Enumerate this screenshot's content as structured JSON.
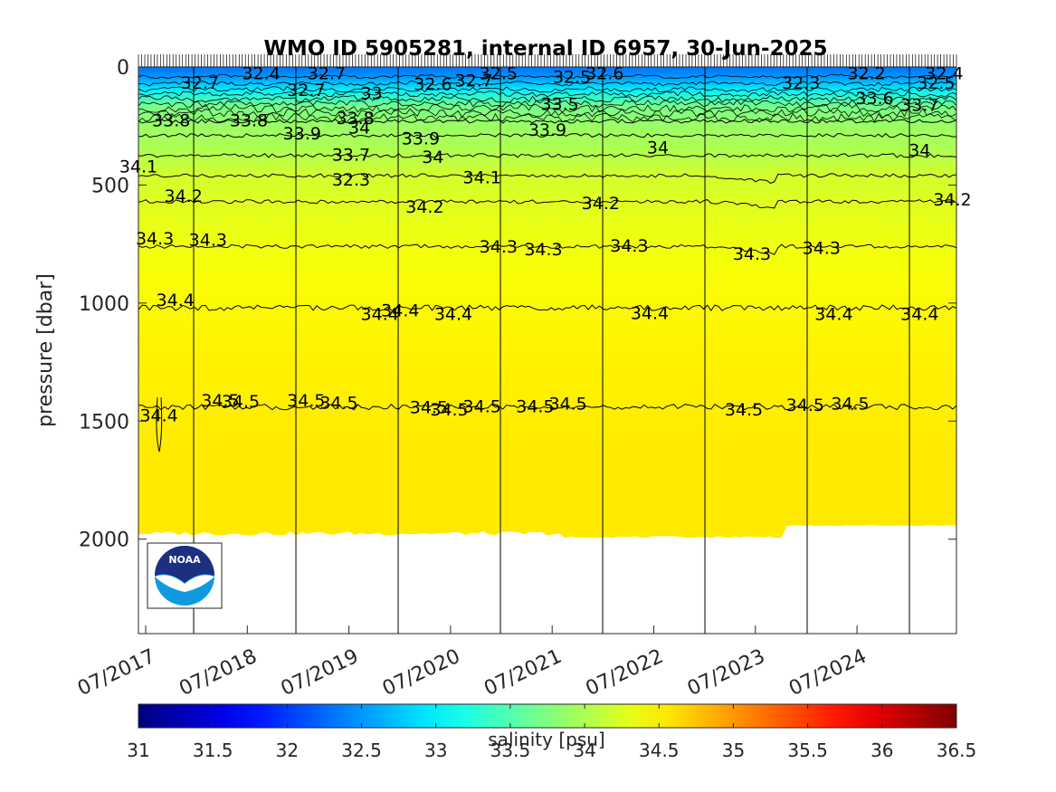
{
  "chart_data": {
    "type": "heatmap",
    "title": "WMO ID 5905281, internal ID 6957, 30-Jun-2025",
    "ylabel": "pressure [dbar]",
    "xlabel": "",
    "ylim": [
      0,
      2400
    ],
    "y_reversed": true,
    "y_ticks": [
      "0",
      "500",
      "1000",
      "1500",
      "2000"
    ],
    "x_ticks": [
      "07/2017",
      "07/2018",
      "07/2019",
      "07/2020",
      "07/2021",
      "07/2022",
      "07/2023",
      "07/2024"
    ],
    "year_divider_count": 8,
    "max_profile_depth_dbar": 2000,
    "colorbar": {
      "label": "salinity [psu]",
      "range": [
        31,
        36.5
      ],
      "ticks": [
        "31",
        "31.5",
        "32",
        "32.5",
        "33",
        "33.5",
        "34",
        "34.5",
        "35",
        "35.5",
        "36",
        "36.5"
      ],
      "colormap": "jet"
    },
    "salinity_profile": [
      {
        "pressure": 0,
        "salinity": 32.3
      },
      {
        "pressure": 50,
        "salinity": 32.5
      },
      {
        "pressure": 120,
        "salinity": 33.0
      },
      {
        "pressure": 200,
        "salinity": 33.7
      },
      {
        "pressure": 300,
        "salinity": 33.9
      },
      {
        "pressure": 420,
        "salinity": 34.0
      },
      {
        "pressure": 560,
        "salinity": 34.2
      },
      {
        "pressure": 760,
        "salinity": 34.3
      },
      {
        "pressure": 1020,
        "salinity": 34.4
      },
      {
        "pressure": 1450,
        "salinity": 34.5
      },
      {
        "pressure": 2000,
        "salinity": 34.55
      }
    ],
    "contour_levels": [
      {
        "value": 33.8,
        "pressure": 230,
        "label": "33.8"
      },
      {
        "value": 33.9,
        "pressure": 290,
        "label": "33.9"
      },
      {
        "value": 34.0,
        "pressure": 375,
        "label": "34"
      },
      {
        "value": 34.1,
        "pressure": 460,
        "label": "34.1"
      },
      {
        "value": 34.2,
        "pressure": 570,
        "label": "34.2"
      },
      {
        "value": 34.3,
        "pressure": 760,
        "label": "34.3"
      },
      {
        "value": 34.4,
        "pressure": 1020,
        "label": "34.4"
      },
      {
        "value": 34.5,
        "pressure": 1440,
        "label": "34.5"
      }
    ],
    "contour_labels": [
      {
        "text": "32.7",
        "t": 0.075,
        "p": 65
      },
      {
        "text": "32.4",
        "t": 0.15,
        "p": 25
      },
      {
        "text": "32.7",
        "t": 0.23,
        "p": 25
      },
      {
        "text": "32.7",
        "t": 0.205,
        "p": 95
      },
      {
        "text": "33",
        "t": 0.285,
        "p": 110
      },
      {
        "text": "32.6",
        "t": 0.36,
        "p": 70
      },
      {
        "text": "32.7",
        "t": 0.41,
        "p": 55
      },
      {
        "text": "32.5",
        "t": 0.44,
        "p": 25
      },
      {
        "text": "32.5",
        "t": 0.53,
        "p": 40
      },
      {
        "text": "32.6",
        "t": 0.57,
        "p": 25
      },
      {
        "text": "32.3",
        "t": 0.81,
        "p": 65
      },
      {
        "text": "32.2",
        "t": 0.89,
        "p": 25
      },
      {
        "text": "32.4",
        "t": 0.985,
        "p": 25
      },
      {
        "text": "32.5",
        "t": 0.975,
        "p": 65
      },
      {
        "text": "33.5",
        "t": 0.515,
        "p": 155
      },
      {
        "text": "33.6",
        "t": 0.9,
        "p": 130
      },
      {
        "text": "33.7",
        "t": 0.955,
        "p": 160
      },
      {
        "text": "33.8",
        "t": 0.04,
        "p": 225
      },
      {
        "text": "33.8",
        "t": 0.135,
        "p": 225
      },
      {
        "text": "33.8",
        "t": 0.265,
        "p": 215
      },
      {
        "text": "34",
        "t": 0.27,
        "p": 255
      },
      {
        "text": "33.9",
        "t": 0.2,
        "p": 280
      },
      {
        "text": "33.9",
        "t": 0.345,
        "p": 300
      },
      {
        "text": "33.9",
        "t": 0.5,
        "p": 265
      },
      {
        "text": "33.7",
        "t": 0.26,
        "p": 370
      },
      {
        "text": "34",
        "t": 0.36,
        "p": 380
      },
      {
        "text": "34",
        "t": 0.635,
        "p": 340
      },
      {
        "text": "34",
        "t": 0.955,
        "p": 350
      },
      {
        "text": "34.1",
        "t": 0.0,
        "p": 420
      },
      {
        "text": "34.1",
        "t": 0.42,
        "p": 465
      },
      {
        "text": "32.3",
        "t": 0.26,
        "p": 475
      },
      {
        "text": "34.2",
        "t": 0.055,
        "p": 545
      },
      {
        "text": "34.2",
        "t": 0.35,
        "p": 590
      },
      {
        "text": "34.2",
        "t": 0.565,
        "p": 575
      },
      {
        "text": "34.2",
        "t": 0.995,
        "p": 560
      },
      {
        "text": "34.3",
        "t": 0.02,
        "p": 725
      },
      {
        "text": "34.3",
        "t": 0.085,
        "p": 730
      },
      {
        "text": "34.3",
        "t": 0.44,
        "p": 760
      },
      {
        "text": "34.3",
        "t": 0.495,
        "p": 770
      },
      {
        "text": "34.3",
        "t": 0.6,
        "p": 755
      },
      {
        "text": "34.3",
        "t": 0.75,
        "p": 790
      },
      {
        "text": "34.3",
        "t": 0.835,
        "p": 765
      },
      {
        "text": "34.4",
        "t": 0.045,
        "p": 985
      },
      {
        "text": "34.4",
        "t": 0.295,
        "p": 1045
      },
      {
        "text": "34.4",
        "t": 0.32,
        "p": 1030
      },
      {
        "text": "34.4",
        "t": 0.385,
        "p": 1045
      },
      {
        "text": "34.4",
        "t": 0.625,
        "p": 1040
      },
      {
        "text": "34.4",
        "t": 0.85,
        "p": 1045
      },
      {
        "text": "34.4",
        "t": 0.955,
        "p": 1045
      },
      {
        "text": "34.5",
        "t": 0.1,
        "p": 1410
      },
      {
        "text": "34.5",
        "t": 0.125,
        "p": 1415
      },
      {
        "text": "34.5",
        "t": 0.205,
        "p": 1410
      },
      {
        "text": "34.5",
        "t": 0.245,
        "p": 1420
      },
      {
        "text": "34.5",
        "t": 0.355,
        "p": 1440
      },
      {
        "text": "34.5",
        "t": 0.38,
        "p": 1450
      },
      {
        "text": "34.5",
        "t": 0.42,
        "p": 1435
      },
      {
        "text": "34.5",
        "t": 0.485,
        "p": 1435
      },
      {
        "text": "34.5",
        "t": 0.525,
        "p": 1425
      },
      {
        "text": "34.5",
        "t": 0.74,
        "p": 1450
      },
      {
        "text": "34.5",
        "t": 0.815,
        "p": 1430
      },
      {
        "text": "34.5",
        "t": 0.87,
        "p": 1425
      },
      {
        "text": "34.4",
        "t": 0.025,
        "p": 1475
      }
    ]
  }
}
